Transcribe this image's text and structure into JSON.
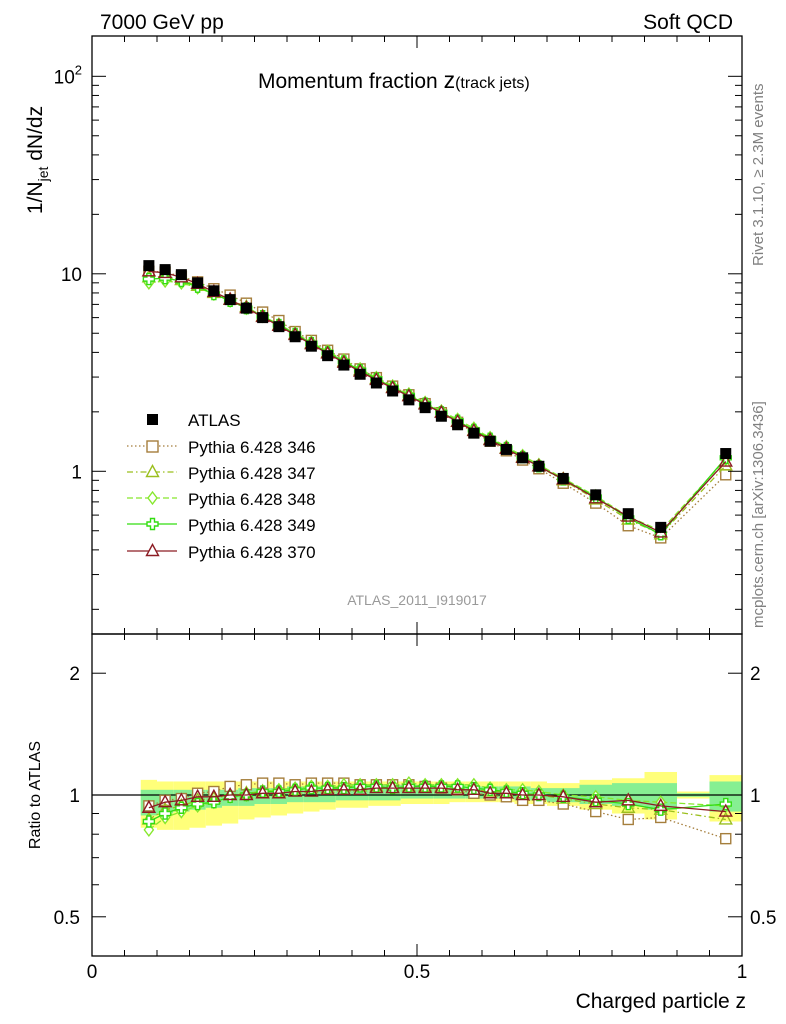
{
  "header": {
    "left": "7000 GeV pp",
    "right": "Soft QCD"
  },
  "side": {
    "rivet": "Rivet 3.1.10, ≥ 2.3M events",
    "mcplots": "mcplots.cern.ch [arXiv:1306.3436]"
  },
  "colors": {
    "data": "#000000",
    "s346": "#a57e3c",
    "s347": "#9bbf1e",
    "s348": "#86e82c",
    "s349": "#33dd11",
    "s370": "#8c1c23",
    "band_outer": "#ffff7a",
    "band_inner": "#86ef92"
  },
  "chart_data": [
    {
      "type": "line",
      "title": "Momentum fraction z(track jets)",
      "title_main": "Momentum fraction ",
      "title_z": "z",
      "title_sub": "(track jets)",
      "ylabel": "1/N_jet dN/dz",
      "ylabel_pre": "1/N",
      "ylabel_sub": "jet",
      "ylabel_post": " dN/dz",
      "y_scale": "log",
      "xlim": [
        0,
        1
      ],
      "ylim": [
        0.15,
        160
      ],
      "y_ticks": [
        {
          "value": 1,
          "label": "1"
        },
        {
          "value": 10,
          "label": "10"
        },
        {
          "value": 100,
          "label": "10",
          "sup": "2"
        }
      ],
      "analysis_label": "ATLAS_2011_I919017",
      "legend": {
        "placement": "middle-left"
      },
      "x": [
        0.0875,
        0.1125,
        0.1375,
        0.1625,
        0.1875,
        0.2125,
        0.2375,
        0.2625,
        0.2875,
        0.3125,
        0.3375,
        0.3625,
        0.3875,
        0.4125,
        0.4375,
        0.4625,
        0.4875,
        0.5125,
        0.5375,
        0.5625,
        0.5875,
        0.6125,
        0.6375,
        0.6625,
        0.6875,
        0.725,
        0.775,
        0.825,
        0.875,
        0.975
      ],
      "series": [
        {
          "name": "ATLAS",
          "key": "atlas",
          "marker": "square-filled",
          "line": "none",
          "values": [
            11.0,
            10.5,
            9.9,
            9.0,
            8.2,
            7.4,
            6.7,
            6.0,
            5.4,
            4.8,
            4.3,
            3.85,
            3.45,
            3.1,
            2.8,
            2.55,
            2.3,
            2.1,
            1.9,
            1.72,
            1.56,
            1.42,
            1.29,
            1.17,
            1.06,
            0.92,
            0.76,
            0.61,
            0.52,
            1.23
          ]
        },
        {
          "name": "Pythia 6.428 346",
          "key": "s346",
          "marker": "square-open",
          "line": "dotted",
          "values": [
            10.3,
            10.2,
            9.7,
            9.1,
            8.4,
            7.8,
            7.1,
            6.4,
            5.8,
            5.1,
            4.6,
            4.1,
            3.7,
            3.3,
            2.98,
            2.7,
            2.44,
            2.2,
            1.98,
            1.77,
            1.57,
            1.42,
            1.27,
            1.14,
            1.03,
            0.87,
            0.69,
            0.53,
            0.46,
            0.96
          ]
        },
        {
          "name": "Pythia 6.428 347",
          "key": "s347",
          "marker": "triangle-open",
          "line": "dashdot",
          "values": [
            9.6,
            9.7,
            9.3,
            8.7,
            8.0,
            7.4,
            6.8,
            6.1,
            5.5,
            4.95,
            4.45,
            4.0,
            3.6,
            3.25,
            2.94,
            2.66,
            2.42,
            2.2,
            1.99,
            1.79,
            1.61,
            1.45,
            1.31,
            1.18,
            1.06,
            0.9,
            0.72,
            0.57,
            0.48,
            1.07
          ]
        },
        {
          "name": "Pythia 6.428 348",
          "key": "s348",
          "marker": "diamond-open",
          "line": "dashed",
          "values": [
            9.0,
            9.2,
            9.0,
            8.5,
            7.9,
            7.3,
            6.7,
            6.1,
            5.55,
            5.0,
            4.5,
            4.05,
            3.65,
            3.3,
            2.98,
            2.7,
            2.46,
            2.23,
            2.02,
            1.83,
            1.65,
            1.48,
            1.33,
            1.2,
            1.08,
            0.92,
            0.75,
            0.59,
            0.5,
            1.15
          ]
        },
        {
          "name": "Pythia 6.428 349",
          "key": "s349",
          "marker": "cross-open",
          "line": "solid",
          "values": [
            9.4,
            9.5,
            9.2,
            8.6,
            7.9,
            7.3,
            6.7,
            6.1,
            5.5,
            4.95,
            4.45,
            4.0,
            3.6,
            3.25,
            2.94,
            2.66,
            2.42,
            2.2,
            1.99,
            1.8,
            1.62,
            1.46,
            1.31,
            1.18,
            1.06,
            0.91,
            0.74,
            0.58,
            0.48,
            1.17
          ]
        },
        {
          "name": "Pythia 6.428 370",
          "key": "s370",
          "marker": "triangle-open",
          "line": "solid",
          "values": [
            10.3,
            10.1,
            9.6,
            8.9,
            8.1,
            7.4,
            6.7,
            6.05,
            5.45,
            4.9,
            4.4,
            3.95,
            3.55,
            3.2,
            2.9,
            2.64,
            2.4,
            2.18,
            1.98,
            1.78,
            1.6,
            1.44,
            1.3,
            1.17,
            1.06,
            0.91,
            0.73,
            0.59,
            0.49,
            1.12
          ]
        }
      ]
    },
    {
      "type": "line",
      "title": "",
      "xlabel": "Charged particle z",
      "ylabel": "Ratio to ATLAS",
      "y_scale": "log",
      "xlim": [
        0,
        1
      ],
      "ylim": [
        0.4,
        2.5
      ],
      "x_ticks": [
        {
          "value": 0,
          "label": "0"
        },
        {
          "value": 0.5,
          "label": "0.5"
        },
        {
          "value": 1,
          "label": "1"
        }
      ],
      "y_ticks": [
        {
          "value": 0.5,
          "label": "0.5"
        },
        {
          "value": 1,
          "label": "1"
        },
        {
          "value": 2,
          "label": "2"
        }
      ],
      "bands": {
        "edges": [
          0.075,
          0.1,
          0.125,
          0.15,
          0.175,
          0.2,
          0.225,
          0.25,
          0.275,
          0.3,
          0.325,
          0.35,
          0.375,
          0.4,
          0.425,
          0.45,
          0.475,
          0.5,
          0.525,
          0.55,
          0.575,
          0.6,
          0.625,
          0.65,
          0.675,
          0.7,
          0.75,
          0.8,
          0.85,
          0.9,
          0.95,
          1.0
        ],
        "outer_low": [
          0.83,
          0.82,
          0.82,
          0.83,
          0.84,
          0.85,
          0.87,
          0.88,
          0.89,
          0.9,
          0.91,
          0.92,
          0.93,
          0.93,
          0.94,
          0.94,
          0.95,
          0.95,
          0.95,
          0.96,
          0.96,
          0.96,
          0.96,
          0.95,
          0.95,
          0.94,
          0.92,
          0.9,
          0.87,
          0.98,
          0.86
        ],
        "outer_high": [
          1.09,
          1.08,
          1.08,
          1.08,
          1.08,
          1.08,
          1.08,
          1.08,
          1.08,
          1.08,
          1.08,
          1.08,
          1.08,
          1.08,
          1.08,
          1.08,
          1.08,
          1.08,
          1.08,
          1.08,
          1.08,
          1.08,
          1.08,
          1.08,
          1.08,
          1.07,
          1.09,
          1.1,
          1.14,
          1.02,
          1.12
        ],
        "inner_low": [
          0.89,
          0.9,
          0.91,
          0.92,
          0.93,
          0.94,
          0.94,
          0.95,
          0.95,
          0.96,
          0.96,
          0.96,
          0.97,
          0.97,
          0.97,
          0.97,
          0.98,
          0.98,
          0.98,
          0.98,
          0.98,
          0.98,
          0.98,
          0.97,
          0.97,
          0.96,
          0.95,
          0.94,
          0.92,
          0.99,
          0.91
        ],
        "inner_high": [
          1.03,
          1.03,
          1.03,
          1.03,
          1.03,
          1.03,
          1.04,
          1.04,
          1.04,
          1.05,
          1.05,
          1.05,
          1.05,
          1.06,
          1.06,
          1.06,
          1.06,
          1.06,
          1.06,
          1.06,
          1.05,
          1.05,
          1.05,
          1.05,
          1.04,
          1.04,
          1.06,
          1.07,
          1.07,
          1.01,
          1.08
        ]
      },
      "series": [
        {
          "name": "Pythia 6.428 346",
          "key": "s346",
          "marker": "square-open",
          "line": "dotted",
          "values": [
            0.94,
            0.97,
            0.98,
            1.01,
            1.02,
            1.05,
            1.06,
            1.07,
            1.07,
            1.06,
            1.07,
            1.07,
            1.07,
            1.06,
            1.06,
            1.06,
            1.06,
            1.05,
            1.04,
            1.03,
            1.01,
            1.0,
            0.99,
            0.97,
            0.97,
            0.95,
            0.91,
            0.87,
            0.88,
            0.78
          ]
        },
        {
          "name": "Pythia 6.428 347",
          "key": "s347",
          "marker": "triangle-open",
          "line": "dashdot",
          "values": [
            0.87,
            0.92,
            0.94,
            0.97,
            0.98,
            1.0,
            1.01,
            1.02,
            1.02,
            1.03,
            1.04,
            1.04,
            1.05,
            1.05,
            1.05,
            1.04,
            1.05,
            1.05,
            1.05,
            1.04,
            1.03,
            1.02,
            1.02,
            1.01,
            1.0,
            0.98,
            0.95,
            0.93,
            0.92,
            0.87
          ]
        },
        {
          "name": "Pythia 6.428 348",
          "key": "s348",
          "marker": "diamond-open",
          "line": "dashed",
          "values": [
            0.82,
            0.88,
            0.91,
            0.94,
            0.96,
            0.99,
            1.0,
            1.02,
            1.03,
            1.04,
            1.05,
            1.05,
            1.06,
            1.06,
            1.06,
            1.06,
            1.07,
            1.06,
            1.06,
            1.06,
            1.06,
            1.04,
            1.03,
            1.03,
            1.02,
            1.0,
            0.99,
            0.97,
            0.96,
            0.94
          ]
        },
        {
          "name": "Pythia 6.428 349",
          "key": "s349",
          "marker": "cross-open",
          "line": "solid",
          "values": [
            0.86,
            0.9,
            0.93,
            0.95,
            0.96,
            0.99,
            1.0,
            1.02,
            1.02,
            1.03,
            1.04,
            1.04,
            1.04,
            1.05,
            1.05,
            1.04,
            1.05,
            1.05,
            1.05,
            1.05,
            1.04,
            1.03,
            1.02,
            1.01,
            1.0,
            0.99,
            0.97,
            0.95,
            0.92,
            0.95
          ]
        },
        {
          "name": "Pythia 6.428 370",
          "key": "s370",
          "marker": "triangle-open",
          "line": "solid",
          "values": [
            0.93,
            0.96,
            0.97,
            0.99,
            0.99,
            1.0,
            1.0,
            1.01,
            1.01,
            1.02,
            1.02,
            1.03,
            1.03,
            1.03,
            1.04,
            1.04,
            1.04,
            1.04,
            1.04,
            1.03,
            1.03,
            1.01,
            1.01,
            1.0,
            1.0,
            0.99,
            0.96,
            0.97,
            0.94,
            0.91
          ]
        }
      ]
    }
  ]
}
